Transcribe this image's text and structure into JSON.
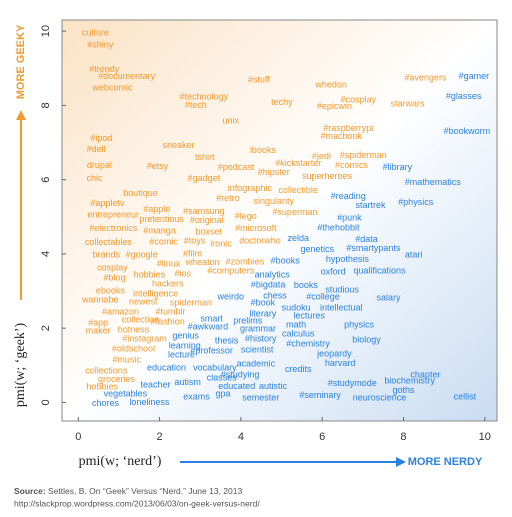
{
  "chart_data": {
    "type": "text-scatter",
    "xlabel": "pmi(w; ‘nerd’)",
    "ylabel": "pmi(w; ‘geek’)",
    "x_direction_label": "MORE NERDY",
    "x_direction_color": "#2a82de",
    "y_direction_label": "MORE GEEKY",
    "y_direction_color": "#f29a2e",
    "source_label": "Source:",
    "source": "Settles, B. On “Geek” Versus “Nerd.” June 13, 2013",
    "source_url": "http://slackprop.wordpress.com/2013/06/03/on-geek-versus-nerd/",
    "xlim": [
      -0.4,
      10.3
    ],
    "ylim": [
      -0.5,
      10.3
    ],
    "xticks": [
      0,
      2,
      4,
      6,
      8,
      10
    ],
    "yticks": [
      0,
      2,
      4,
      6,
      8,
      10
    ],
    "points": [
      {
        "label": "culture",
        "x": 0.42,
        "y": 9.95,
        "color": "#f29a2e"
      },
      {
        "label": "#shiny",
        "x": 0.54,
        "y": 9.62,
        "color": "#f29a2e"
      },
      {
        "label": "#trendy",
        "x": 0.64,
        "y": 8.97,
        "color": "#f29a2e"
      },
      {
        "label": "#documentary",
        "x": 1.19,
        "y": 8.78,
        "color": "#f29a2e"
      },
      {
        "label": "webcomic",
        "x": 0.84,
        "y": 8.46,
        "color": "#f29a2e"
      },
      {
        "label": "#technology",
        "x": 3.09,
        "y": 8.22,
        "color": "#f29a2e"
      },
      {
        "label": "#tech",
        "x": 2.89,
        "y": 8.0,
        "color": "#f29a2e"
      },
      {
        "label": "#stuff",
        "x": 4.44,
        "y": 8.68,
        "color": "#f29a2e"
      },
      {
        "label": "techy",
        "x": 5.01,
        "y": 8.08,
        "color": "#f29a2e"
      },
      {
        "label": "whedon",
        "x": 6.22,
        "y": 8.54,
        "color": "#f29a2e"
      },
      {
        "label": "#cosplay",
        "x": 6.89,
        "y": 8.14,
        "color": "#f29a2e"
      },
      {
        "label": "#epicwin",
        "x": 6.3,
        "y": 7.97,
        "color": "#f29a2e"
      },
      {
        "label": "#avengers",
        "x": 8.54,
        "y": 8.73,
        "color": "#f29a2e"
      },
      {
        "label": "starwars",
        "x": 8.1,
        "y": 8.03,
        "color": "#f29a2e"
      },
      {
        "label": "unix",
        "x": 3.75,
        "y": 7.57,
        "color": "#f29a2e"
      },
      {
        "label": "#raspberrypi",
        "x": 6.64,
        "y": 7.38,
        "color": "#f29a2e"
      },
      {
        "label": "#macbook",
        "x": 6.47,
        "y": 7.16,
        "color": "#f29a2e"
      },
      {
        "label": "#ipod",
        "x": 0.57,
        "y": 7.11,
        "color": "#f29a2e"
      },
      {
        "label": "#dell",
        "x": 0.44,
        "y": 6.81,
        "color": "#f29a2e"
      },
      {
        "label": "sneaker",
        "x": 2.47,
        "y": 6.92,
        "color": "#f29a2e"
      },
      {
        "label": "tshirt",
        "x": 3.11,
        "y": 6.59,
        "color": "#f29a2e"
      },
      {
        "label": "ibooks",
        "x": 4.54,
        "y": 6.78,
        "color": "#f29a2e"
      },
      {
        "label": "#jedi",
        "x": 5.98,
        "y": 6.62,
        "color": "#f29a2e"
      },
      {
        "label": "#spiderman",
        "x": 7.01,
        "y": 6.65,
        "color": "#f29a2e"
      },
      {
        "label": "drupal",
        "x": 0.52,
        "y": 6.38,
        "color": "#f29a2e"
      },
      {
        "label": "#etsy",
        "x": 1.95,
        "y": 6.35,
        "color": "#f29a2e"
      },
      {
        "label": "#podcast",
        "x": 3.88,
        "y": 6.32,
        "color": "#f29a2e"
      },
      {
        "label": "#kickstarter",
        "x": 5.41,
        "y": 6.43,
        "color": "#f29a2e"
      },
      {
        "label": "#comics",
        "x": 6.72,
        "y": 6.38,
        "color": "#f29a2e"
      },
      {
        "label": "chic",
        "x": 0.4,
        "y": 6.03,
        "color": "#f29a2e"
      },
      {
        "label": "#gadget",
        "x": 3.09,
        "y": 6.03,
        "color": "#f29a2e"
      },
      {
        "label": "#hipster",
        "x": 4.81,
        "y": 6.19,
        "color": "#f29a2e"
      },
      {
        "label": "superheroes",
        "x": 6.12,
        "y": 6.08,
        "color": "#f29a2e"
      },
      {
        "label": "infographic",
        "x": 4.22,
        "y": 5.76,
        "color": "#f29a2e"
      },
      {
        "label": "collectible",
        "x": 5.41,
        "y": 5.7,
        "color": "#f29a2e"
      },
      {
        "label": "boutique",
        "x": 1.53,
        "y": 5.62,
        "color": "#f29a2e"
      },
      {
        "label": "#retro",
        "x": 3.68,
        "y": 5.49,
        "color": "#f29a2e"
      },
      {
        "label": "singularity",
        "x": 4.81,
        "y": 5.41,
        "color": "#f29a2e"
      },
      {
        "label": "#appletv",
        "x": 0.72,
        "y": 5.35,
        "color": "#f29a2e"
      },
      {
        "label": "#apple",
        "x": 1.93,
        "y": 5.19,
        "color": "#f29a2e"
      },
      {
        "label": "#samsung",
        "x": 3.09,
        "y": 5.14,
        "color": "#f29a2e"
      },
      {
        "label": "entrepreneur",
        "x": 0.86,
        "y": 5.05,
        "color": "#f29a2e"
      },
      {
        "label": "pretentious",
        "x": 2.05,
        "y": 4.92,
        "color": "#f29a2e"
      },
      {
        "label": "#original",
        "x": 3.16,
        "y": 4.89,
        "color": "#f29a2e"
      },
      {
        "label": "#lego",
        "x": 4.12,
        "y": 5.0,
        "color": "#f29a2e"
      },
      {
        "label": "#superman",
        "x": 5.33,
        "y": 5.11,
        "color": "#f29a2e"
      },
      {
        "label": "#electronics",
        "x": 0.86,
        "y": 4.68,
        "color": "#f29a2e"
      },
      {
        "label": "#manga",
        "x": 2.0,
        "y": 4.62,
        "color": "#f29a2e"
      },
      {
        "label": "boxset",
        "x": 3.21,
        "y": 4.59,
        "color": "#f29a2e"
      },
      {
        "label": "#microsoft",
        "x": 4.37,
        "y": 4.68,
        "color": "#f29a2e"
      },
      {
        "label": "#comic",
        "x": 2.1,
        "y": 4.32,
        "color": "#f29a2e"
      },
      {
        "label": "#toys",
        "x": 2.86,
        "y": 4.35,
        "color": "#f29a2e"
      },
      {
        "label": "ironic",
        "x": 3.51,
        "y": 4.27,
        "color": "#f29a2e"
      },
      {
        "label": "doctorwho",
        "x": 4.47,
        "y": 4.35,
        "color": "#f29a2e"
      },
      {
        "label": "collectables",
        "x": 0.74,
        "y": 4.3,
        "color": "#f29a2e"
      },
      {
        "label": "brands",
        "x": 0.69,
        "y": 3.97,
        "color": "#f29a2e"
      },
      {
        "label": "#google",
        "x": 1.56,
        "y": 3.97,
        "color": "#f29a2e"
      },
      {
        "label": "#film",
        "x": 2.81,
        "y": 4.0,
        "color": "#f29a2e"
      },
      {
        "label": "#zombies",
        "x": 4.1,
        "y": 3.78,
        "color": "#f29a2e"
      },
      {
        "label": "#linux",
        "x": 2.22,
        "y": 3.73,
        "color": "#f29a2e"
      },
      {
        "label": "wheaton",
        "x": 3.06,
        "y": 3.76,
        "color": "#f29a2e"
      },
      {
        "label": "cosplay",
        "x": 0.84,
        "y": 3.62,
        "color": "#f29a2e"
      },
      {
        "label": "#blog",
        "x": 0.89,
        "y": 3.35,
        "color": "#f29a2e"
      },
      {
        "label": "hobbies",
        "x": 1.75,
        "y": 3.43,
        "color": "#f29a2e"
      },
      {
        "label": "#ios",
        "x": 2.57,
        "y": 3.46,
        "color": "#f29a2e"
      },
      {
        "label": "#computers",
        "x": 3.75,
        "y": 3.54,
        "color": "#f29a2e"
      },
      {
        "label": "hackers",
        "x": 2.2,
        "y": 3.19,
        "color": "#f29a2e"
      },
      {
        "label": "ebooks",
        "x": 0.79,
        "y": 3.0,
        "color": "#f29a2e"
      },
      {
        "label": "intelligence",
        "x": 1.9,
        "y": 2.92,
        "color": "#f29a2e"
      },
      {
        "label": "wannabe",
        "x": 0.54,
        "y": 2.76,
        "color": "#f29a2e"
      },
      {
        "label": "newest",
        "x": 1.6,
        "y": 2.7,
        "color": "#f29a2e"
      },
      {
        "label": "spiderman",
        "x": 2.77,
        "y": 2.68,
        "color": "#f29a2e"
      },
      {
        "label": "#amazon",
        "x": 1.04,
        "y": 2.43,
        "color": "#f29a2e"
      },
      {
        "label": "#tumblr",
        "x": 2.27,
        "y": 2.43,
        "color": "#f29a2e"
      },
      {
        "label": "#app",
        "x": 0.49,
        "y": 2.14,
        "color": "#f29a2e"
      },
      {
        "label": "collection",
        "x": 1.53,
        "y": 2.22,
        "color": "#f29a2e"
      },
      {
        "label": "#fashion",
        "x": 2.2,
        "y": 2.16,
        "color": "#f29a2e"
      },
      {
        "label": "maker",
        "x": 0.49,
        "y": 1.92,
        "color": "#f29a2e"
      },
      {
        "label": "hotness",
        "x": 1.36,
        "y": 1.95,
        "color": "#f29a2e"
      },
      {
        "label": "#instagram",
        "x": 1.63,
        "y": 1.7,
        "color": "#f29a2e"
      },
      {
        "label": "#oldschool",
        "x": 1.36,
        "y": 1.43,
        "color": "#f29a2e"
      },
      {
        "label": "#music",
        "x": 1.19,
        "y": 1.14,
        "color": "#f29a2e"
      },
      {
        "label": "collections",
        "x": 0.69,
        "y": 0.84,
        "color": "#f29a2e"
      },
      {
        "label": "groceries",
        "x": 0.94,
        "y": 0.62,
        "color": "#f29a2e"
      },
      {
        "label": "hobbies",
        "x": 0.59,
        "y": 0.41,
        "color": "#f29a2e"
      },
      {
        "label": "vegetables",
        "x": 1.16,
        "y": 0.22,
        "color": "#2a82de"
      },
      {
        "label": "teacher",
        "x": 1.9,
        "y": 0.46,
        "color": "#2a82de"
      },
      {
        "label": "autism",
        "x": 2.69,
        "y": 0.54,
        "color": "#2a82de"
      },
      {
        "label": "education",
        "x": 2.17,
        "y": 0.92,
        "color": "#2a82de"
      },
      {
        "label": "vocabulary",
        "x": 3.36,
        "y": 0.92,
        "color": "#2a82de"
      },
      {
        "label": "chores",
        "x": 0.67,
        "y": -0.03,
        "color": "#2a82de"
      },
      {
        "label": "loneliness",
        "x": 1.75,
        "y": 0.0,
        "color": "#2a82de"
      },
      {
        "label": "exams",
        "x": 2.91,
        "y": 0.14,
        "color": "#2a82de"
      },
      {
        "label": "gpa",
        "x": 3.56,
        "y": 0.22,
        "color": "#2a82de"
      },
      {
        "label": "classes",
        "x": 3.53,
        "y": 0.65,
        "color": "#2a82de"
      },
      {
        "label": "educated",
        "x": 3.9,
        "y": 0.43,
        "color": "#2a82de"
      },
      {
        "label": "#studying",
        "x": 3.98,
        "y": 0.73,
        "color": "#2a82de"
      },
      {
        "label": "academic",
        "x": 4.37,
        "y": 1.03,
        "color": "#2a82de"
      },
      {
        "label": "semester",
        "x": 4.49,
        "y": 0.11,
        "color": "#2a82de"
      },
      {
        "label": "autistic",
        "x": 4.79,
        "y": 0.43,
        "color": "#2a82de"
      },
      {
        "label": "credits",
        "x": 5.41,
        "y": 0.89,
        "color": "#2a82de"
      },
      {
        "label": "#seminary",
        "x": 5.95,
        "y": 0.19,
        "color": "#2a82de"
      },
      {
        "label": "harvard",
        "x": 6.44,
        "y": 1.05,
        "color": "#2a82de"
      },
      {
        "label": "#studymode",
        "x": 6.74,
        "y": 0.51,
        "color": "#2a82de"
      },
      {
        "label": "neuroscience",
        "x": 7.41,
        "y": 0.11,
        "color": "#2a82de"
      },
      {
        "label": "jeopardy",
        "x": 6.3,
        "y": 1.3,
        "color": "#2a82de"
      },
      {
        "label": "#chemistry",
        "x": 5.65,
        "y": 1.57,
        "color": "#2a82de"
      },
      {
        "label": "biochemistry",
        "x": 8.15,
        "y": 0.57,
        "color": "#2a82de"
      },
      {
        "label": "chapter",
        "x": 8.54,
        "y": 0.73,
        "color": "#2a82de"
      },
      {
        "label": "goths",
        "x": 8.0,
        "y": 0.32,
        "color": "#2a82de"
      },
      {
        "label": "cellist",
        "x": 9.51,
        "y": 0.14,
        "color": "#2a82de"
      },
      {
        "label": "biology",
        "x": 7.09,
        "y": 1.68,
        "color": "#2a82de"
      },
      {
        "label": "physics",
        "x": 6.91,
        "y": 2.08,
        "color": "#2a82de"
      },
      {
        "label": "intellectual",
        "x": 6.47,
        "y": 2.54,
        "color": "#2a82de"
      },
      {
        "label": "calculus",
        "x": 5.41,
        "y": 1.84,
        "color": "#2a82de"
      },
      {
        "label": "math",
        "x": 5.36,
        "y": 2.08,
        "color": "#2a82de"
      },
      {
        "label": "lectures",
        "x": 5.68,
        "y": 2.32,
        "color": "#2a82de"
      },
      {
        "label": "sudoku",
        "x": 5.36,
        "y": 2.54,
        "color": "#2a82de"
      },
      {
        "label": "#college",
        "x": 6.02,
        "y": 2.84,
        "color": "#2a82de"
      },
      {
        "label": "studious",
        "x": 6.49,
        "y": 3.03,
        "color": "#2a82de"
      },
      {
        "label": "salary",
        "x": 7.63,
        "y": 2.81,
        "color": "#2a82de"
      },
      {
        "label": "books",
        "x": 5.6,
        "y": 3.14,
        "color": "#2a82de"
      },
      {
        "label": "chess",
        "x": 4.84,
        "y": 2.86,
        "color": "#2a82de"
      },
      {
        "label": "#book",
        "x": 4.54,
        "y": 2.68,
        "color": "#2a82de"
      },
      {
        "label": "literary",
        "x": 4.54,
        "y": 2.38,
        "color": "#2a82de"
      },
      {
        "label": "#bigdata",
        "x": 4.67,
        "y": 3.16,
        "color": "#2a82de"
      },
      {
        "label": "weirdo",
        "x": 3.75,
        "y": 2.84,
        "color": "#2a82de"
      },
      {
        "label": "prelims",
        "x": 4.17,
        "y": 2.19,
        "color": "#2a82de"
      },
      {
        "label": "smart",
        "x": 3.28,
        "y": 2.24,
        "color": "#2a82de"
      },
      {
        "label": "#awkward",
        "x": 3.19,
        "y": 2.03,
        "color": "#2a82de"
      },
      {
        "label": "grammar",
        "x": 4.42,
        "y": 1.97,
        "color": "#2a82de"
      },
      {
        "label": "genius",
        "x": 2.64,
        "y": 1.78,
        "color": "#2a82de"
      },
      {
        "label": "thesis",
        "x": 3.65,
        "y": 1.65,
        "color": "#2a82de"
      },
      {
        "label": "#history",
        "x": 4.49,
        "y": 1.7,
        "color": "#2a82de"
      },
      {
        "label": "learning",
        "x": 2.62,
        "y": 1.51,
        "color": "#2a82de"
      },
      {
        "label": "#professor",
        "x": 3.28,
        "y": 1.38,
        "color": "#2a82de"
      },
      {
        "label": "scientist",
        "x": 4.4,
        "y": 1.41,
        "color": "#2a82de"
      },
      {
        "label": "lecture",
        "x": 2.54,
        "y": 1.27,
        "color": "#2a82de"
      },
      {
        "label": "analytics",
        "x": 4.77,
        "y": 3.43,
        "color": "#2a82de"
      },
      {
        "label": "#books",
        "x": 5.09,
        "y": 3.81,
        "color": "#2a82de"
      },
      {
        "label": "hypothesis",
        "x": 6.62,
        "y": 3.84,
        "color": "#2a82de"
      },
      {
        "label": "oxford",
        "x": 6.27,
        "y": 3.51,
        "color": "#2a82de"
      },
      {
        "label": "qualifications",
        "x": 7.41,
        "y": 3.54,
        "color": "#2a82de"
      },
      {
        "label": "zelda",
        "x": 5.41,
        "y": 4.41,
        "color": "#2a82de"
      },
      {
        "label": "genetics",
        "x": 5.88,
        "y": 4.11,
        "color": "#2a82de"
      },
      {
        "label": "#data",
        "x": 7.09,
        "y": 4.38,
        "color": "#2a82de"
      },
      {
        "label": "#smartypants",
        "x": 7.26,
        "y": 4.14,
        "color": "#2a82de"
      },
      {
        "label": "atari",
        "x": 8.25,
        "y": 3.97,
        "color": "#2a82de"
      },
      {
        "label": "#thehobbit",
        "x": 6.4,
        "y": 4.7,
        "color": "#2a82de"
      },
      {
        "label": "#punk",
        "x": 6.67,
        "y": 4.97,
        "color": "#2a82de"
      },
      {
        "label": "startrek",
        "x": 7.19,
        "y": 5.3,
        "color": "#2a82de"
      },
      {
        "label": "#reading",
        "x": 6.64,
        "y": 5.54,
        "color": "#2a82de"
      },
      {
        "label": "#physics",
        "x": 8.3,
        "y": 5.38,
        "color": "#2a82de"
      },
      {
        "label": "#mathematics",
        "x": 8.72,
        "y": 5.92,
        "color": "#2a82de"
      },
      {
        "label": "#library",
        "x": 7.85,
        "y": 6.32,
        "color": "#2a82de"
      },
      {
        "label": "#bookworm",
        "x": 9.56,
        "y": 7.3,
        "color": "#2a82de"
      },
      {
        "label": "#glasses",
        "x": 9.48,
        "y": 8.24,
        "color": "#2a82de"
      },
      {
        "label": "#gamer",
        "x": 9.73,
        "y": 8.78,
        "color": "#2a82de"
      }
    ]
  }
}
